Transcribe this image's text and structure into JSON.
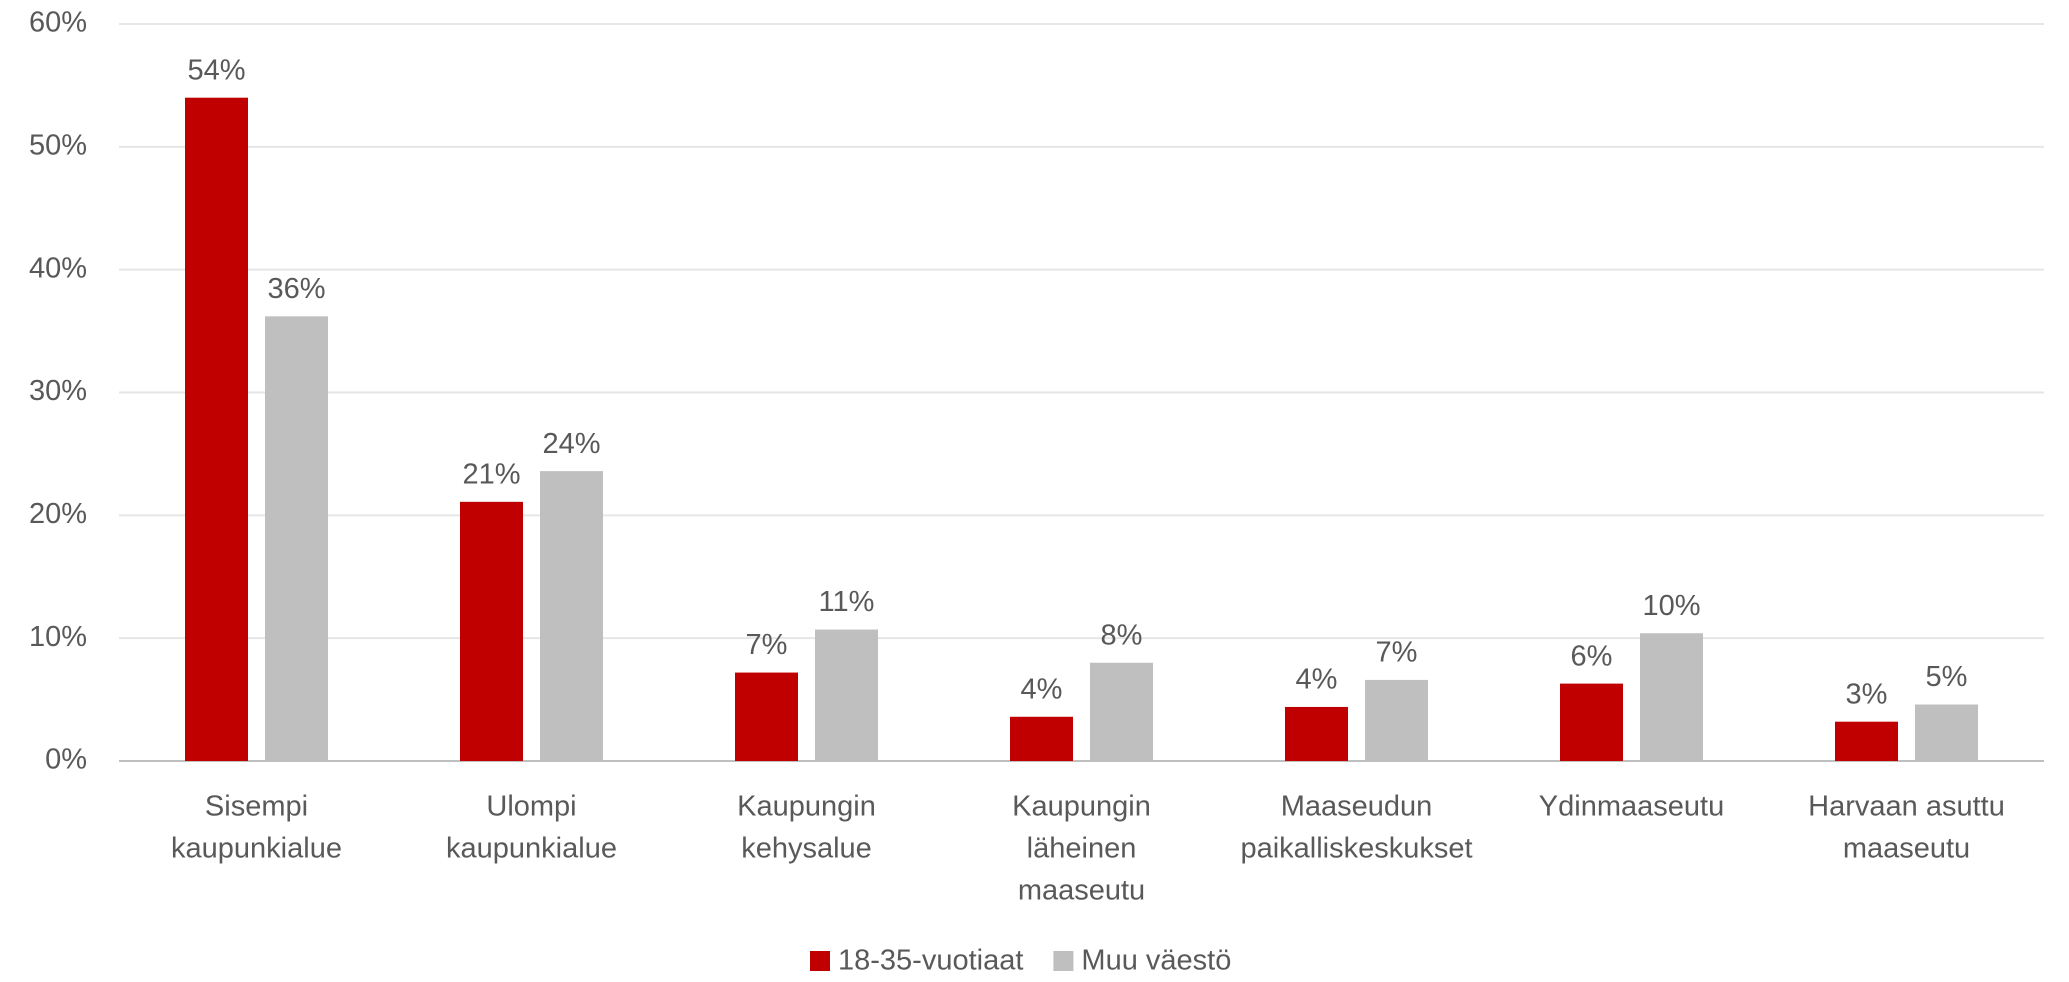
{
  "chart_data": {
    "type": "bar",
    "categories": [
      [
        "Sisempi",
        "kaupunkialue"
      ],
      [
        "Ulompi",
        "kaupunkialue"
      ],
      [
        "Kaupungin",
        "kehysalue"
      ],
      [
        "Kaupungin",
        "läheinen",
        "maaseutu"
      ],
      [
        "Maaseudun",
        "paikalliskeskukset"
      ],
      [
        "Ydinmaaseutu"
      ],
      [
        "Harvaan asuttu",
        "maaseutu"
      ]
    ],
    "series": [
      {
        "name": "18-35-vuotiaat",
        "color": "#c00000",
        "values": [
          54,
          21.1,
          7.2,
          3.6,
          4.4,
          6.3,
          3.2
        ],
        "value_labels": [
          "54%",
          "21%",
          "7%",
          "4%",
          "4%",
          "6%",
          "3%"
        ]
      },
      {
        "name": "Muu väestö",
        "color": "#bfbfbf",
        "values": [
          36.2,
          23.6,
          10.7,
          8.0,
          6.6,
          10.4,
          4.6
        ],
        "value_labels": [
          "36%",
          "24%",
          "11%",
          "8%",
          "7%",
          "10%",
          "5%"
        ]
      }
    ],
    "ylim": [
      0,
      60
    ],
    "yticks": [
      {
        "value": 0,
        "label": "0%"
      },
      {
        "value": 10,
        "label": "10%"
      },
      {
        "value": 20,
        "label": "20%"
      },
      {
        "value": 30,
        "label": "30%"
      },
      {
        "value": 40,
        "label": "40%"
      },
      {
        "value": 50,
        "label": "50%"
      },
      {
        "value": 60,
        "label": "60%"
      }
    ],
    "grid": true,
    "legend": "bottom"
  }
}
